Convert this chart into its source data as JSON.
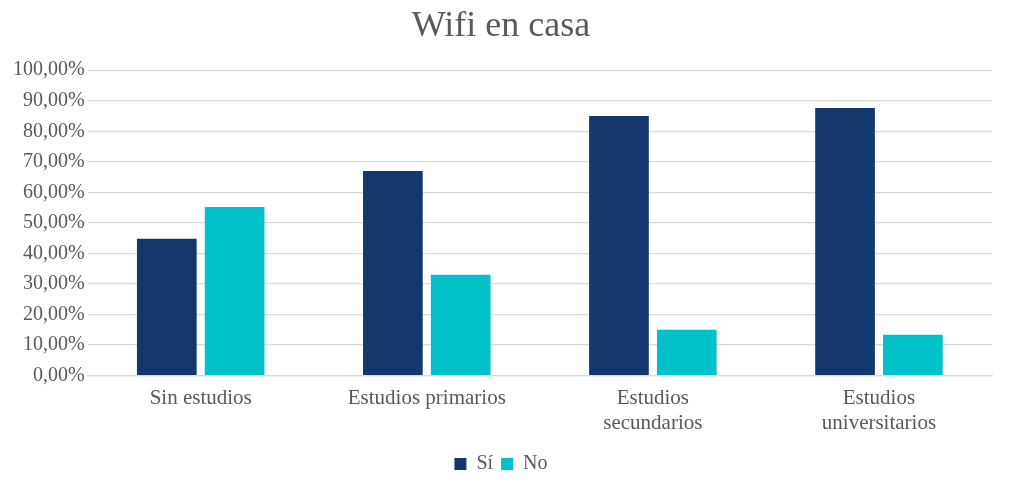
{
  "chart_data": {
    "type": "bar",
    "title": "Wifi en casa",
    "categories": [
      "Sin estudios",
      "Estudios primarios",
      "Estudios secundarios",
      "Estudios universitarios"
    ],
    "series": [
      {
        "name": "Sí",
        "color": "#14386b",
        "values": [
          44.8,
          67,
          85,
          87.6
        ]
      },
      {
        "name": "No",
        "color": "#00c0c8",
        "values": [
          55.2,
          33,
          15,
          13.4
        ]
      }
    ],
    "ylim": [
      0,
      100
    ],
    "yticks": [
      {
        "value": 0,
        "label": "0,00%"
      },
      {
        "value": 10,
        "label": "10,00%"
      },
      {
        "value": 20,
        "label": "20,00%"
      },
      {
        "value": 30,
        "label": "30,00%"
      },
      {
        "value": 40,
        "label": "40,00%"
      },
      {
        "value": 50,
        "label": "50,00%"
      },
      {
        "value": 60,
        "label": "60,00%"
      },
      {
        "value": 70,
        "label": "70,00%"
      },
      {
        "value": 80,
        "label": "80,00%"
      },
      {
        "value": 90,
        "label": "90,00%"
      },
      {
        "value": 100,
        "label": "100,00%"
      }
    ],
    "grid": "y",
    "legend": "bottom"
  }
}
